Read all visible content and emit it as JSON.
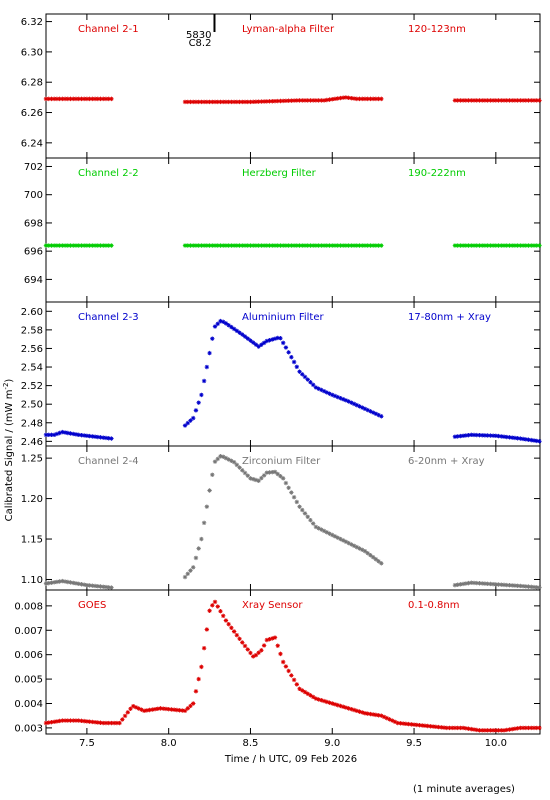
{
  "chart_data": {
    "type": "scatter",
    "x_label": "Time / h UTC, 09 Feb 2026",
    "y_label": "Calibrated Signal / (mW m",
    "y_label_sup": "-2",
    "y_label_close": ")",
    "footnote": "(1 minute averages)",
    "xlim": [
      7.25,
      10.27
    ],
    "x_ticks": [
      7.5,
      8.0,
      8.5,
      9.0,
      9.5,
      10.0
    ],
    "x_tick_labels": [
      "7.5",
      "8.0",
      "8.5",
      "9.0",
      "9.5",
      "10.0"
    ],
    "flare_marker": {
      "time": 8.28,
      "label_top": "5830",
      "label_bottom": "C8.2"
    },
    "panels": [
      {
        "name": "Channel 2-1",
        "filter": "Lyman-alpha Filter",
        "band": "120-123nm",
        "color": "#dd0000",
        "ylim": [
          6.23,
          6.325
        ],
        "y_ticks": [
          6.24,
          6.26,
          6.28,
          6.3,
          6.32
        ],
        "y_tick_labels": [
          "6.24",
          "6.26",
          "6.28",
          "6.30",
          "6.32"
        ],
        "segments": [
          [
            [
              7.25,
              6.269
            ],
            [
              7.65,
              6.269
            ]
          ],
          [
            [
              8.1,
              6.267
            ],
            [
              8.5,
              6.267
            ],
            [
              8.8,
              6.268
            ],
            [
              8.95,
              6.268
            ],
            [
              9.08,
              6.27
            ],
            [
              9.15,
              6.269
            ],
            [
              9.3,
              6.269
            ]
          ],
          [
            [
              9.75,
              6.268
            ],
            [
              10.27,
              6.268
            ]
          ]
        ]
      },
      {
        "name": "Channel 2-2",
        "filter": "Herzberg Filter",
        "band": "190-222nm",
        "color": "#00cc00",
        "ylim": [
          692.4,
          702.6
        ],
        "y_ticks": [
          694,
          696,
          698,
          700,
          702
        ],
        "y_tick_labels": [
          "694",
          "696",
          "698",
          "700",
          "702"
        ],
        "segments": [
          [
            [
              7.25,
              696.4
            ],
            [
              7.65,
              696.4
            ]
          ],
          [
            [
              8.1,
              696.4
            ],
            [
              9.3,
              696.4
            ]
          ],
          [
            [
              9.75,
              696.4
            ],
            [
              10.27,
              696.4
            ]
          ]
        ]
      },
      {
        "name": "Channel 2-3",
        "filter": "Aluminium Filter",
        "band": "17-80nm + Xray",
        "color": "#0000cc",
        "ylim": [
          2.455,
          2.61
        ],
        "y_ticks": [
          2.46,
          2.48,
          2.5,
          2.52,
          2.54,
          2.56,
          2.58,
          2.6
        ],
        "y_tick_labels": [
          "2.46",
          "2.48",
          "2.50",
          "2.52",
          "2.54",
          "2.56",
          "2.58",
          "2.60"
        ],
        "segments": [
          [
            [
              7.25,
              2.467
            ],
            [
              7.3,
              2.467
            ],
            [
              7.35,
              2.47
            ],
            [
              7.45,
              2.467
            ],
            [
              7.65,
              2.463
            ]
          ],
          [
            [
              8.1,
              2.477
            ],
            [
              8.15,
              2.485
            ],
            [
              8.2,
              2.51
            ],
            [
              8.25,
              2.555
            ],
            [
              8.28,
              2.583
            ],
            [
              8.32,
              2.59
            ],
            [
              8.35,
              2.587
            ],
            [
              8.45,
              2.575
            ],
            [
              8.55,
              2.562
            ],
            [
              8.6,
              2.568
            ],
            [
              8.68,
              2.572
            ],
            [
              8.72,
              2.56
            ],
            [
              8.8,
              2.535
            ],
            [
              8.9,
              2.518
            ],
            [
              9.0,
              2.51
            ],
            [
              9.1,
              2.503
            ],
            [
              9.2,
              2.495
            ],
            [
              9.3,
              2.487
            ]
          ],
          [
            [
              9.75,
              2.465
            ],
            [
              9.85,
              2.467
            ],
            [
              10.0,
              2.466
            ],
            [
              10.15,
              2.463
            ],
            [
              10.27,
              2.46
            ]
          ]
        ]
      },
      {
        "name": "Channel 2-4",
        "filter": "Zirconium Filter",
        "band": "6-20nm + Xray",
        "color": "#777777",
        "ylim": [
          1.087,
          1.265
        ],
        "y_ticks": [
          1.1,
          1.15,
          1.2,
          1.25
        ],
        "y_tick_labels": [
          "1.10",
          "1.15",
          "1.20",
          "1.25"
        ],
        "segments": [
          [
            [
              7.25,
              1.095
            ],
            [
              7.35,
              1.098
            ],
            [
              7.5,
              1.093
            ],
            [
              7.65,
              1.09
            ]
          ],
          [
            [
              8.1,
              1.103
            ],
            [
              8.15,
              1.115
            ],
            [
              8.2,
              1.15
            ],
            [
              8.25,
              1.21
            ],
            [
              8.28,
              1.245
            ],
            [
              8.32,
              1.253
            ],
            [
              8.4,
              1.245
            ],
            [
              8.5,
              1.225
            ],
            [
              8.55,
              1.222
            ],
            [
              8.6,
              1.232
            ],
            [
              8.65,
              1.233
            ],
            [
              8.7,
              1.225
            ],
            [
              8.8,
              1.19
            ],
            [
              8.9,
              1.165
            ],
            [
              9.0,
              1.155
            ],
            [
              9.1,
              1.145
            ],
            [
              9.2,
              1.135
            ],
            [
              9.3,
              1.12
            ]
          ],
          [
            [
              9.75,
              1.093
            ],
            [
              9.85,
              1.096
            ],
            [
              10.0,
              1.094
            ],
            [
              10.15,
              1.092
            ],
            [
              10.27,
              1.09
            ]
          ]
        ]
      },
      {
        "name": "GOES",
        "filter": "Xray Sensor",
        "band": "0.1-0.8nm",
        "color": "#dd0000",
        "ylim": [
          0.00275,
          0.00865
        ],
        "y_ticks": [
          0.003,
          0.004,
          0.005,
          0.006,
          0.007,
          0.008
        ],
        "y_tick_labels": [
          "0.003",
          "0.004",
          "0.005",
          "0.006",
          "0.007",
          "0.008"
        ],
        "segments": [
          [
            [
              7.25,
              0.0032
            ],
            [
              7.35,
              0.0033
            ],
            [
              7.45,
              0.0033
            ],
            [
              7.6,
              0.0032
            ],
            [
              7.7,
              0.0032
            ],
            [
              7.78,
              0.0039
            ],
            [
              7.85,
              0.0037
            ],
            [
              7.95,
              0.0038
            ],
            [
              8.1,
              0.0037
            ],
            [
              8.15,
              0.004
            ],
            [
              8.2,
              0.0055
            ],
            [
              8.25,
              0.0078
            ],
            [
              8.28,
              0.0082
            ],
            [
              8.35,
              0.0074
            ],
            [
              8.45,
              0.0065
            ],
            [
              8.52,
              0.0059
            ],
            [
              8.57,
              0.0062
            ],
            [
              8.6,
              0.0066
            ],
            [
              8.65,
              0.0067
            ],
            [
              8.7,
              0.0057
            ],
            [
              8.8,
              0.0046
            ],
            [
              8.9,
              0.0042
            ],
            [
              9.0,
              0.004
            ],
            [
              9.1,
              0.0038
            ],
            [
              9.2,
              0.0036
            ],
            [
              9.3,
              0.0035
            ],
            [
              9.4,
              0.0032
            ],
            [
              9.55,
              0.0031
            ],
            [
              9.7,
              0.003
            ],
            [
              9.8,
              0.003
            ],
            [
              9.9,
              0.0029
            ],
            [
              10.05,
              0.0029
            ],
            [
              10.15,
              0.003
            ],
            [
              10.27,
              0.003
            ]
          ]
        ]
      }
    ]
  }
}
